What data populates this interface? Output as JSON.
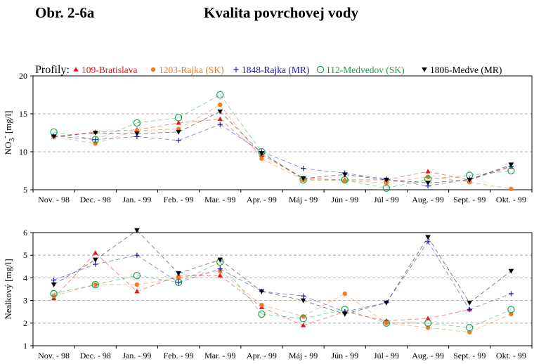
{
  "figure_label": "Obr. 2-6a",
  "title": "Kvalita povrchovej vody",
  "legend_title": "Profily:",
  "series_styles": [
    {
      "name": "109-Bratislava",
      "color": "#e8141a",
      "marker": "triangle-up"
    },
    {
      "name": "1203-Rajka (SK)",
      "color": "#f07d24",
      "marker": "dot"
    },
    {
      "name": "1848-Rajka (MR)",
      "color": "#1a1ab8",
      "marker": "plus"
    },
    {
      "name": "112-Medvedov (SK)",
      "color": "#19a34a",
      "marker": "circle-open"
    },
    {
      "name": "1806-Medve (MR)",
      "color": "#000000",
      "marker": "triangle-down"
    }
  ],
  "chart_data": [
    {
      "type": "line",
      "ylabel": "NO3- [mg/l]",
      "ylim": [
        5,
        20
      ],
      "yticks": [
        5,
        10,
        15,
        20
      ],
      "categories": [
        "Nov. - 98",
        "Dec. - 98",
        "Jan. - 99",
        "Feb. - 99",
        "Mar. - 99",
        "Apr. - 99",
        "Máj - 99",
        "Jún - 99",
        "Júl - 99",
        "Aug. - 99",
        "Sept. - 99",
        "Okt. - 99"
      ],
      "grid": "horizontal-dashed",
      "series": [
        {
          "name": "109-Bratislava",
          "values": [
            12.0,
            12.6,
            12.9,
            13.8,
            14.3,
            9.6,
            6.5,
            6.3,
            6.3,
            7.4,
            6.3,
            8.0
          ]
        },
        {
          "name": "1203-Rajka (SK)",
          "values": [
            12.0,
            11.1,
            12.8,
            13.0,
            16.2,
            9.1,
            6.3,
            6.2,
            5.9,
            6.7,
            6.0,
            5.1
          ]
        },
        {
          "name": "1848-Rajka (MR)",
          "values": [
            12.1,
            11.6,
            12.0,
            11.5,
            13.6,
            10.0,
            7.8,
            7.2,
            6.4,
            5.5,
            6.4,
            8.1
          ]
        },
        {
          "name": "112-Medvedov (SK)",
          "values": [
            12.6,
            11.6,
            13.8,
            14.5,
            17.5,
            10.0,
            6.3,
            6.3,
            5.2,
            6.4,
            6.9,
            7.5
          ]
        },
        {
          "name": "1806-Medve (MR)",
          "values": [
            12.0,
            12.5,
            12.4,
            12.6,
            15.3,
            9.8,
            6.5,
            7.0,
            6.3,
            5.9,
            6.3,
            8.3
          ]
        }
      ]
    },
    {
      "type": "line",
      "ylabel": "Nealkový [mg/l]",
      "ylim": [
        1,
        6
      ],
      "yticks": [
        1,
        2,
        3,
        4,
        5,
        6
      ],
      "categories": [
        "Nov. - 98",
        "Dec. - 98",
        "Jan. - 99",
        "Feb. - 99",
        "Mar. - 99",
        "Apr. - 99",
        "Máj - 99",
        "Jún - 99",
        "Júl - 99",
        "Aug. - 99",
        "Sept. - 99",
        "Okt. - 99"
      ],
      "grid": "horizontal-dashed",
      "series": [
        {
          "name": "109-Bratislava",
          "values": [
            3.1,
            5.1,
            3.4,
            4.1,
            4.1,
            2.7,
            1.9,
            2.5,
            2.1,
            2.2,
            2.6,
            null
          ]
        },
        {
          "name": "1203-Rajka (SK)",
          "values": [
            3.2,
            3.7,
            3.7,
            4.0,
            4.3,
            2.8,
            2.3,
            3.3,
            2.0,
            1.8,
            1.6,
            2.4
          ]
        },
        {
          "name": "1848-Rajka (MR)",
          "values": [
            3.9,
            4.6,
            5.0,
            3.8,
            4.4,
            3.4,
            3.2,
            2.5,
            2.9,
            5.6,
            2.6,
            3.3
          ]
        },
        {
          "name": "112-Medvedov (SK)",
          "values": [
            3.3,
            3.7,
            4.1,
            3.8,
            4.7,
            2.4,
            2.2,
            2.6,
            2.0,
            2.0,
            1.8,
            2.6
          ]
        },
        {
          "name": "1806-Medve (MR)",
          "values": [
            3.7,
            4.8,
            6.1,
            4.2,
            4.8,
            3.4,
            3.0,
            2.4,
            2.9,
            5.8,
            2.9,
            4.3
          ]
        }
      ]
    }
  ]
}
